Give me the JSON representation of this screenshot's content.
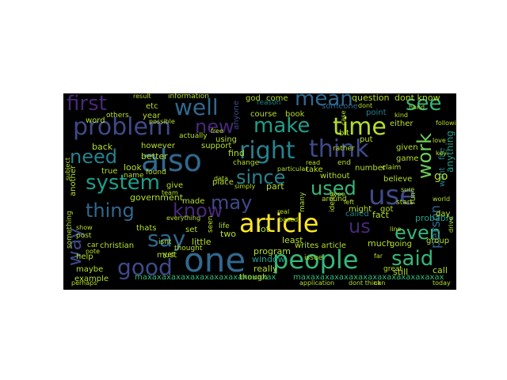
{
  "palette": {
    "background": "#000000",
    "purple": "#482878",
    "indigo": "#3e4a89",
    "blue": "#31688e",
    "teal": "#26828e",
    "green": "#1f9e89",
    "lightgreen": "#35b779",
    "lime": "#6ece58",
    "yellow": "#b5de2b",
    "gold": "#fde725"
  },
  "words": [
    {
      "text": "also",
      "color": "blue"
    },
    {
      "text": "one",
      "color": "blue"
    },
    {
      "text": "article",
      "color": "gold"
    },
    {
      "text": "people",
      "color": "lightgreen"
    },
    {
      "text": "think",
      "color": "indigo"
    },
    {
      "text": "use",
      "color": "indigo"
    },
    {
      "text": "right",
      "color": "teal"
    },
    {
      "text": "problem",
      "color": "indigo"
    },
    {
      "text": "time",
      "color": "yellow"
    },
    {
      "text": "well",
      "color": "blue"
    },
    {
      "text": "say",
      "color": "blue"
    },
    {
      "text": "first",
      "color": "purple"
    },
    {
      "text": "make",
      "color": "green"
    },
    {
      "text": "system",
      "color": "green"
    },
    {
      "text": "mean",
      "color": "blue"
    },
    {
      "text": "good",
      "color": "indigo"
    },
    {
      "text": "thing",
      "color": "blue"
    },
    {
      "text": "know",
      "color": "purple"
    },
    {
      "text": "said",
      "color": "lightgreen"
    },
    {
      "text": "used",
      "color": "lightgreen"
    },
    {
      "text": "new",
      "color": "purple"
    },
    {
      "text": "may",
      "color": "indigo"
    },
    {
      "text": "since",
      "color": "teal"
    },
    {
      "text": "need",
      "color": "teal"
    },
    {
      "text": "see",
      "color": "lightgreen"
    },
    {
      "text": "even",
      "color": "lightgreen"
    },
    {
      "text": "us",
      "color": "purple"
    },
    {
      "text": "way",
      "color": "indigo"
    },
    {
      "text": "work",
      "color": "lime"
    },
    {
      "text": "person",
      "color": "blue"
    },
    {
      "text": "maxaxaxaxaxaxaxaxaxaxaxaxaxax",
      "color": "lightgreen"
    },
    {
      "text": "maxaxaxaxaxaxaxaxaxaxaxaxaxaxax",
      "color": "lightgreen"
    },
    {
      "text": "question",
      "color": "yellow"
    },
    {
      "text": "dont know",
      "color": "yellow"
    },
    {
      "text": "writes article",
      "color": "yellow"
    },
    {
      "text": "want",
      "color": "teal"
    },
    {
      "text": "file",
      "color": "teal"
    },
    {
      "text": "go",
      "color": "yellow"
    },
    {
      "text": "anything",
      "color": "green"
    },
    {
      "text": "probably",
      "color": "green"
    },
    {
      "text": "day",
      "color": "yellow"
    },
    {
      "text": "group",
      "color": "yellow"
    },
    {
      "text": "call",
      "color": "yellow"
    },
    {
      "text": "still",
      "color": "yellow"
    },
    {
      "text": "much",
      "color": "yellow"
    },
    {
      "text": "going",
      "color": "yellow"
    },
    {
      "text": "fact",
      "color": "yellow"
    },
    {
      "text": "called",
      "color": "teal"
    },
    {
      "text": "issue",
      "color": "yellow"
    },
    {
      "text": "least",
      "color": "yellow"
    },
    {
      "text": "window",
      "color": "green"
    },
    {
      "text": "really",
      "color": "yellow"
    },
    {
      "text": "though",
      "color": "yellow"
    },
    {
      "text": "program",
      "color": "yellow"
    },
    {
      "text": "lot",
      "color": "yellow"
    },
    {
      "text": "part",
      "color": "yellow"
    },
    {
      "text": "two",
      "color": "yellow"
    },
    {
      "text": "little",
      "color": "yellow"
    },
    {
      "text": "set",
      "color": "yellow"
    },
    {
      "text": "made",
      "color": "yellow"
    },
    {
      "text": "government",
      "color": "yellow"
    },
    {
      "text": "give",
      "color": "yellow"
    },
    {
      "text": "look",
      "color": "yellow"
    },
    {
      "text": "however",
      "color": "yellow"
    },
    {
      "text": "back",
      "color": "yellow"
    },
    {
      "text": "better",
      "color": "yellow"
    },
    {
      "text": "found",
      "color": "yellow"
    },
    {
      "text": "true",
      "color": "yellow"
    },
    {
      "text": "word",
      "color": "yellow"
    },
    {
      "text": "etc",
      "color": "yellow"
    },
    {
      "text": "year",
      "color": "yellow"
    },
    {
      "text": "using",
      "color": "yellow"
    },
    {
      "text": "find",
      "color": "yellow"
    },
    {
      "text": "place",
      "color": "yellow"
    },
    {
      "text": "course",
      "color": "yellow"
    },
    {
      "text": "book",
      "color": "yellow"
    },
    {
      "text": "god",
      "color": "yellow"
    },
    {
      "text": "come",
      "color": "yellow"
    },
    {
      "text": "reason",
      "color": "teal"
    },
    {
      "text": "someone",
      "color": "blue"
    },
    {
      "text": "put",
      "color": "yellow"
    },
    {
      "text": "bit",
      "color": "yellow"
    },
    {
      "text": "take",
      "color": "yellow"
    },
    {
      "text": "without",
      "color": "yellow"
    },
    {
      "text": "number",
      "color": "yellow"
    },
    {
      "text": "claim",
      "color": "yellow"
    },
    {
      "text": "believe",
      "color": "yellow"
    },
    {
      "text": "might",
      "color": "yellow"
    },
    {
      "text": "got",
      "color": "yellow"
    },
    {
      "text": "run",
      "color": "yellow"
    },
    {
      "text": "game",
      "color": "yellow"
    },
    {
      "text": "given",
      "color": "yellow"
    },
    {
      "text": "either",
      "color": "yellow"
    },
    {
      "text": "point",
      "color": "teal"
    },
    {
      "text": "help",
      "color": "yellow"
    },
    {
      "text": "must",
      "color": "yellow"
    },
    {
      "text": "maybe",
      "color": "yellow"
    },
    {
      "text": "example",
      "color": "yellow"
    },
    {
      "text": "thats",
      "color": "yellow"
    },
    {
      "text": "christian",
      "color": "yellow"
    },
    {
      "text": "post",
      "color": "yellow"
    },
    {
      "text": "car",
      "color": "yellow"
    },
    {
      "text": "support",
      "color": "yellow"
    },
    {
      "text": "actually",
      "color": "yellow"
    },
    {
      "text": "information",
      "color": "yellow"
    },
    {
      "text": "result",
      "color": "yellow"
    },
    {
      "text": "others",
      "color": "yellow"
    },
    {
      "text": "name",
      "color": "yellow"
    },
    {
      "text": "another",
      "color": "yellow"
    },
    {
      "text": "life",
      "color": "yellow"
    },
    {
      "text": "start",
      "color": "yellow"
    },
    {
      "text": "great",
      "color": "yellow"
    },
    {
      "text": "line",
      "color": "yellow"
    },
    {
      "text": "world",
      "color": "yellow"
    },
    {
      "text": "something",
      "color": "yellow"
    },
    {
      "text": "ideas",
      "color": "yellow"
    },
    {
      "text": "many",
      "color": "yellow"
    },
    {
      "text": "around",
      "color": "yellow"
    },
    {
      "text": "show",
      "color": "yellow"
    },
    {
      "text": "thought",
      "color": "yellow"
    },
    {
      "text": "seen",
      "color": "yellow"
    },
    {
      "text": "end",
      "color": "yellow"
    },
    {
      "text": "isnt",
      "color": "yellow"
    },
    {
      "text": "team",
      "color": "yellow"
    },
    {
      "text": "anyone",
      "color": "indigo"
    },
    {
      "text": "change",
      "color": "yellow"
    },
    {
      "text": "read",
      "color": "yellow"
    },
    {
      "text": "rather",
      "color": "yellow"
    },
    {
      "text": "dont",
      "color": "yellow"
    },
    {
      "text": "application",
      "color": "yellow"
    },
    {
      "text": "following",
      "color": "yellow"
    },
    {
      "text": "kind",
      "color": "yellow"
    },
    {
      "text": "type",
      "color": "yellow"
    },
    {
      "text": "yet",
      "color": "yellow"
    },
    {
      "text": "left",
      "color": "yellow"
    },
    {
      "text": "particular",
      "color": "yellow"
    },
    {
      "text": "subject",
      "color": "yellow"
    },
    {
      "text": "possible",
      "color": "yellow"
    },
    {
      "text": "hand",
      "color": "yellow"
    },
    {
      "text": "dont think",
      "color": "yellow"
    },
    {
      "text": "drive",
      "color": "yellow"
    },
    {
      "text": "based",
      "color": "yellow"
    },
    {
      "text": "case",
      "color": "yellow"
    },
    {
      "text": "simply",
      "color": "yellow"
    },
    {
      "text": "sure",
      "color": "yellow"
    },
    {
      "text": "far",
      "color": "yellow"
    },
    {
      "text": "data",
      "color": "yellow"
    },
    {
      "text": "perhaps",
      "color": "yellow"
    },
    {
      "text": "note",
      "color": "yellow"
    },
    {
      "text": "real",
      "color": "yellow"
    },
    {
      "text": "can",
      "color": "yellow"
    },
    {
      "text": "everything",
      "color": "yellow"
    },
    {
      "text": "key",
      "color": "yellow"
    },
    {
      "text": "love",
      "color": "yellow"
    },
    {
      "text": "free",
      "color": "yellow"
    },
    {
      "text": "today",
      "color": "yellow"
    }
  ]
}
